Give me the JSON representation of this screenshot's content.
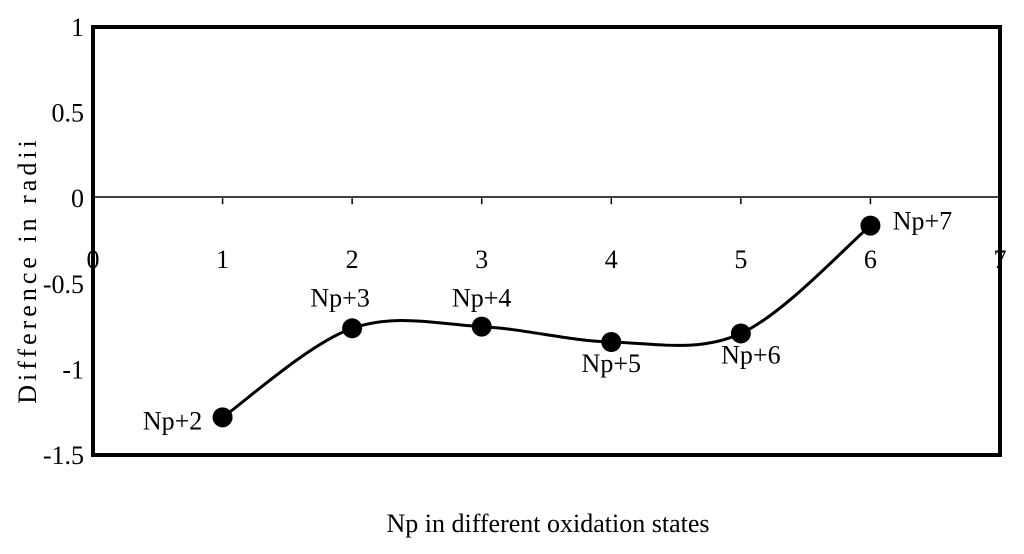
{
  "chart_data": {
    "type": "line",
    "title": "",
    "xlabel": "Np in different oxidation states",
    "ylabel": "Difference in radii",
    "xlim": [
      0,
      7
    ],
    "ylim": [
      -1.5,
      1
    ],
    "x_ticks": [
      "0",
      "1",
      "2",
      "3",
      "4",
      "5",
      "6",
      "7"
    ],
    "y_ticks": [
      "1",
      "0.5",
      "0",
      "-0.5",
      "-1",
      "-1.5"
    ],
    "grid": false,
    "smooth": true,
    "series": [
      {
        "x": [
          1,
          2,
          3,
          4,
          5,
          6
        ],
        "y": [
          -1.28,
          -0.76,
          -0.75,
          -0.84,
          -0.79,
          -0.16
        ],
        "labels": [
          "Np+2",
          "Np+3",
          "Np+4",
          "Np+5",
          "Np+6",
          "Np+7"
        ]
      }
    ]
  }
}
